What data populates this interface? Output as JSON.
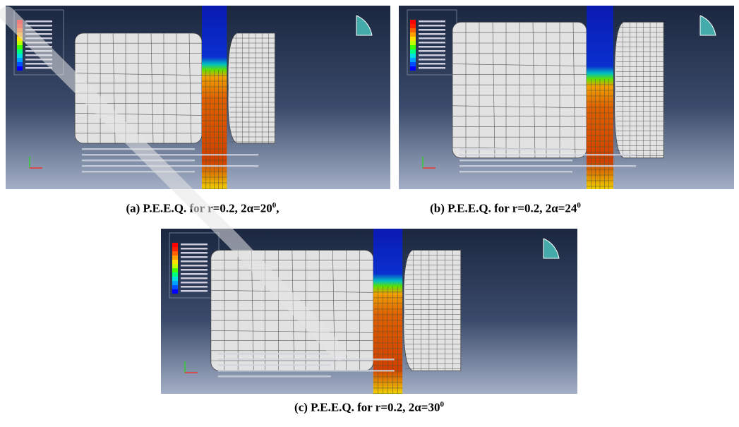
{
  "figures": [
    {
      "caption": {
        "main": "(a) P.E.E.Q. for r=0.2, 2α=20",
        "sup": "0",
        "tail": ","
      }
    },
    {
      "caption": {
        "main": "(b) P.E.E.Q. for r=0.2, 2α=24",
        "sup": "0"
      }
    },
    {
      "caption": {
        "main": "(c) P.E.E.Q. for r=0.2, 2α=30",
        "sup": "0"
      }
    }
  ]
}
